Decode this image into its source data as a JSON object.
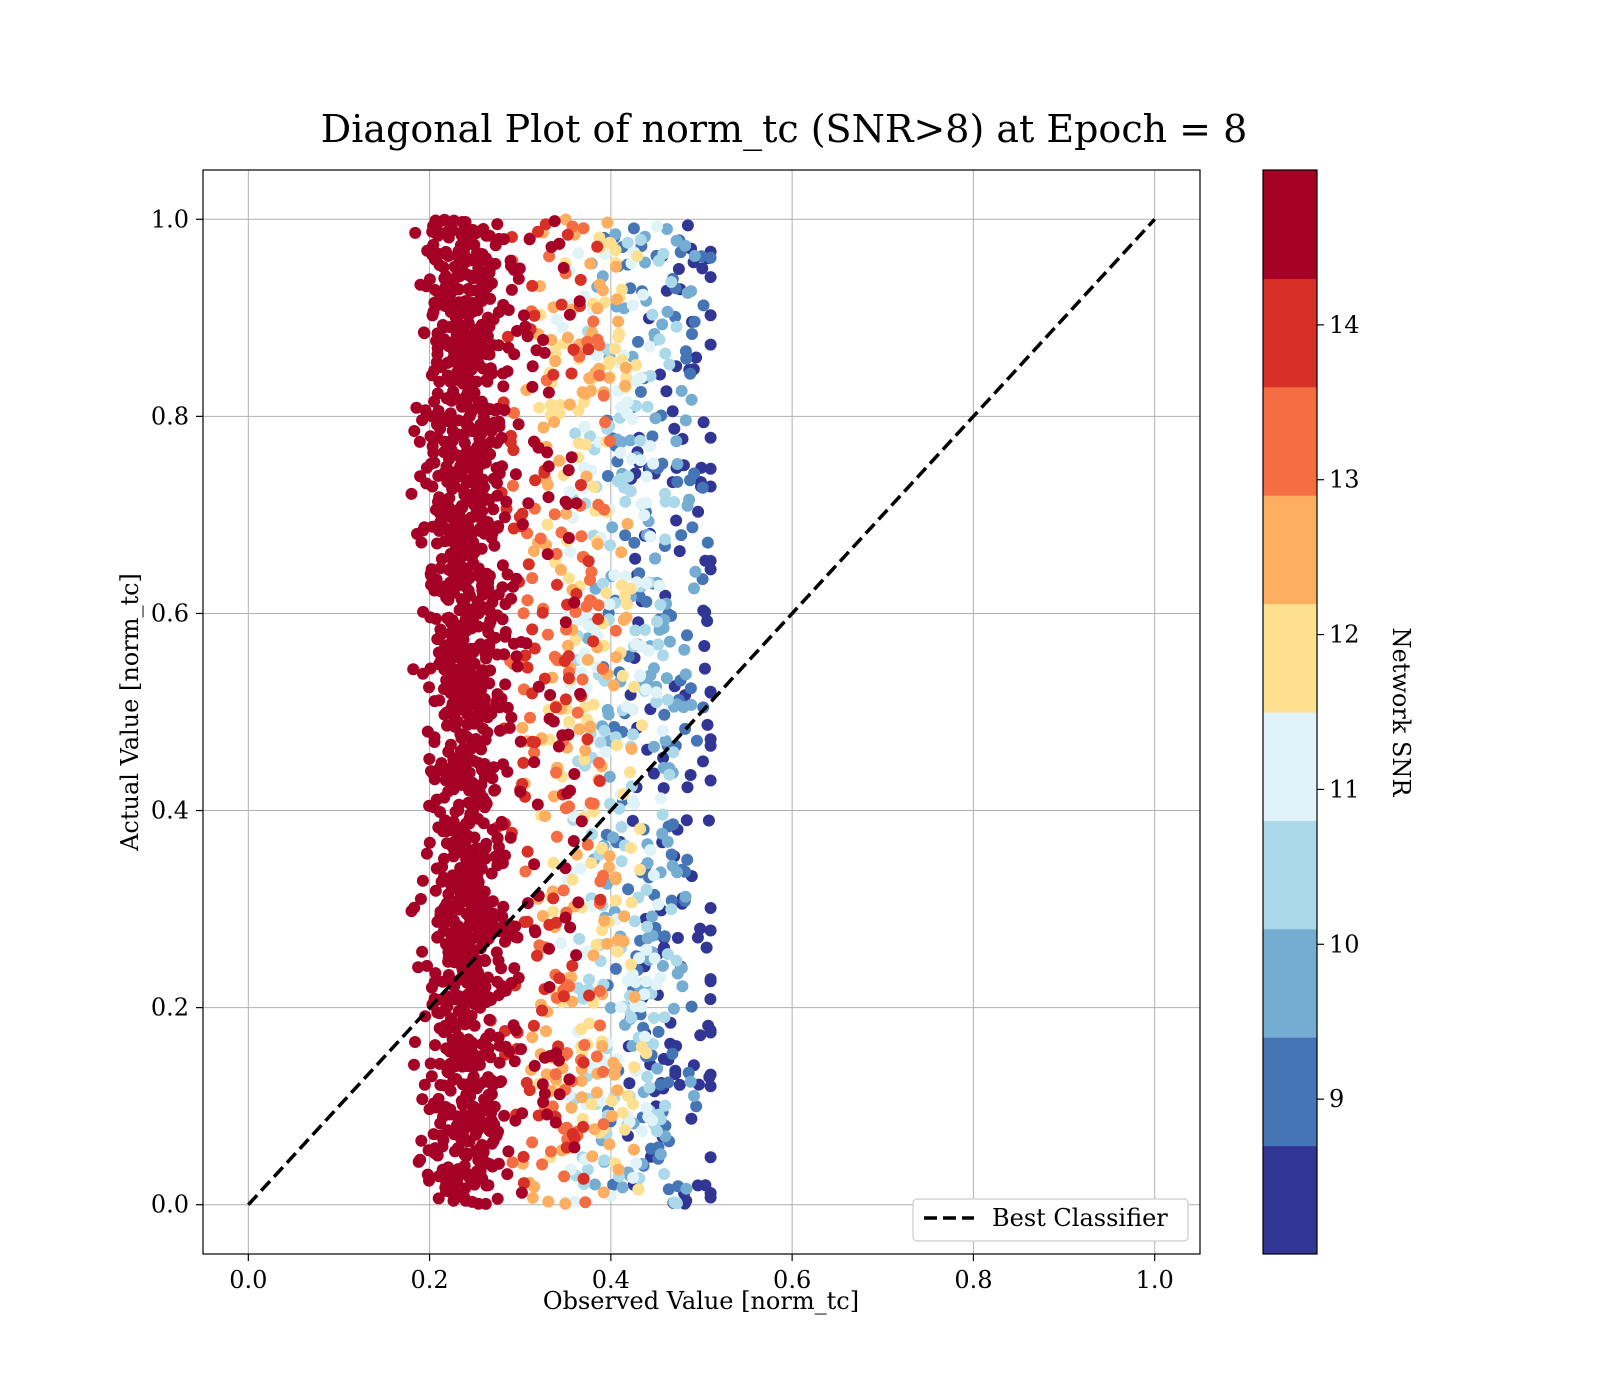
{
  "chart_data": {
    "type": "scatter",
    "title": "Diagonal Plot of norm_tc (SNR>8) at Epoch = 8",
    "xlabel": "Observed Value [norm_tc]",
    "ylabel": "Actual Value [norm_tc]",
    "xlim": [
      -0.05,
      1.05
    ],
    "ylim": [
      -0.05,
      1.05
    ],
    "xticks": [
      "0.0",
      "0.2",
      "0.4",
      "0.6",
      "0.8",
      "1.0"
    ],
    "yticks": [
      "0.0",
      "0.2",
      "0.4",
      "0.6",
      "0.8",
      "1.0"
    ],
    "grid": true,
    "legend": {
      "placement": "lower-right",
      "entries": [
        "Best Classifier"
      ]
    },
    "reference_line": {
      "label": "Best Classifier",
      "x": [
        0.0,
        1.0
      ],
      "y": [
        0.0,
        1.0
      ],
      "style": "dashed",
      "color": "#000000"
    },
    "colorbar": {
      "label": "Network SNR",
      "range": [
        8.0,
        15.0
      ],
      "ticks": [
        "9",
        "10",
        "11",
        "12",
        "13",
        "14"
      ],
      "bands": [
        {
          "from": 8.0,
          "to": 8.7,
          "color": "#313695"
        },
        {
          "from": 8.7,
          "to": 9.4,
          "color": "#4575b4"
        },
        {
          "from": 9.4,
          "to": 10.1,
          "color": "#74add1"
        },
        {
          "from": 10.1,
          "to": 10.8,
          "color": "#abd9e9"
        },
        {
          "from": 10.8,
          "to": 11.5,
          "color": "#e0f3f8"
        },
        {
          "from": 11.5,
          "to": 12.2,
          "color": "#fee090"
        },
        {
          "from": 12.2,
          "to": 12.9,
          "color": "#fdae61"
        },
        {
          "from": 12.9,
          "to": 13.6,
          "color": "#f46d43"
        },
        {
          "from": 13.6,
          "to": 14.3,
          "color": "#d73027"
        },
        {
          "from": 14.3,
          "to": 15.0,
          "color": "#a50026"
        }
      ]
    },
    "point_distribution": {
      "x_range": [
        0.18,
        0.51
      ],
      "y_range": [
        0.0,
        1.0
      ],
      "high_snr_x_center": 0.24,
      "high_snr_x_spread": 0.03,
      "low_snr_x_range": [
        0.3,
        0.48
      ],
      "n_points": 2600
    }
  }
}
